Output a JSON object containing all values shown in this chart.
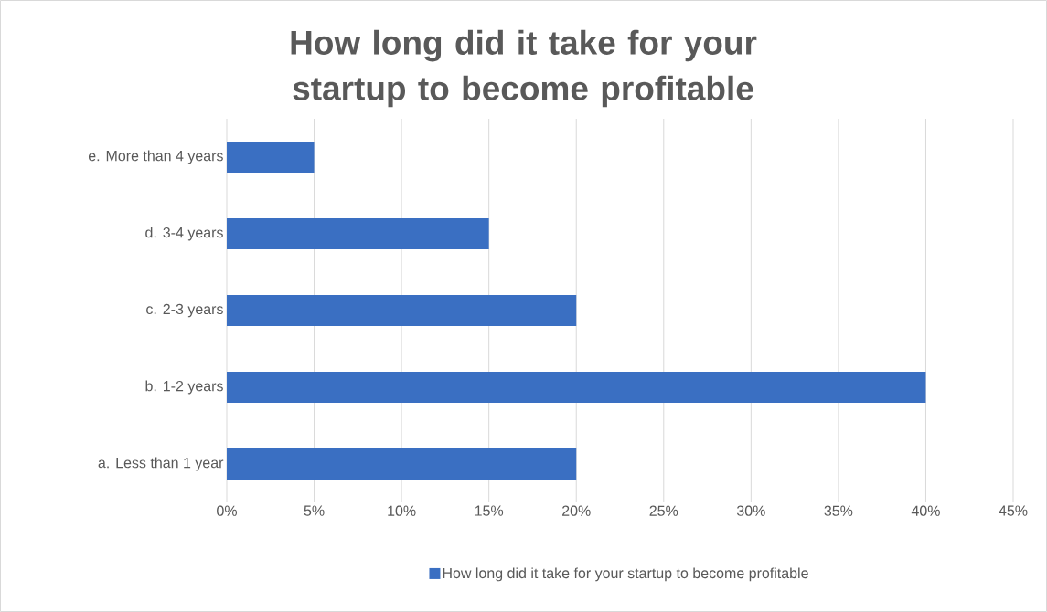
{
  "chart_data": {
    "type": "bar",
    "orientation": "horizontal",
    "title": "How long did it take for your startup to become profitable",
    "categories": [
      "e. More than 4 years",
      "d. 3-4 years",
      "c. 2-3 years",
      "b. 1-2 years",
      "a. Less than 1 year"
    ],
    "series": [
      {
        "name": "How long did it take for your startup to become profitable",
        "color": "#3a6fc2",
        "values": [
          5,
          15,
          20,
          40,
          20
        ]
      }
    ],
    "xlim": [
      0,
      45
    ],
    "xticks": [
      {
        "value": 0,
        "label": "0%"
      },
      {
        "value": 5,
        "label": "5%"
      },
      {
        "value": 10,
        "label": "10%"
      },
      {
        "value": 15,
        "label": "15%"
      },
      {
        "value": 20,
        "label": "20%"
      },
      {
        "value": 25,
        "label": "25%"
      },
      {
        "value": 30,
        "label": "30%"
      },
      {
        "value": 35,
        "label": "35%"
      },
      {
        "value": 40,
        "label": "40%"
      },
      {
        "value": 45,
        "label": "45%"
      }
    ],
    "grid": "x",
    "legend": "bottom"
  }
}
